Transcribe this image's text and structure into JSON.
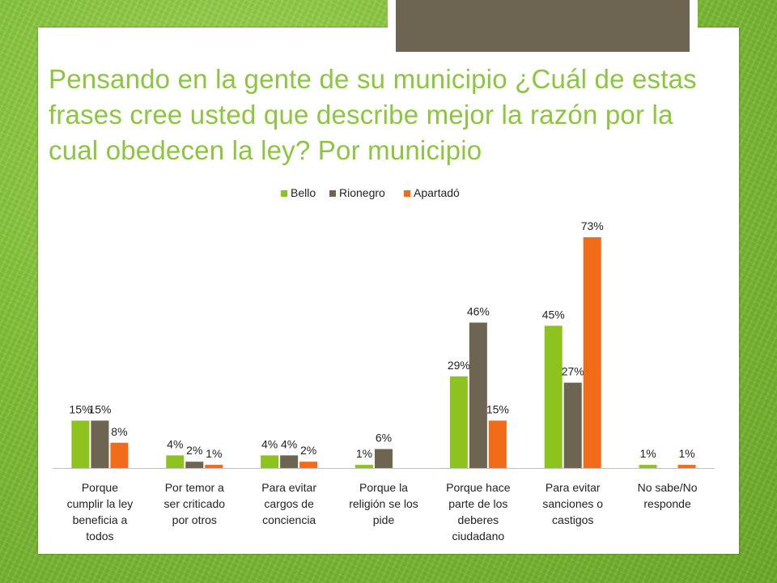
{
  "title": "Pensando en la gente de su municipio ¿Cuál de estas frases cree usted que describe mejor la razón por la cual obedecen la ley? Por municipio",
  "colors": {
    "Bello": "#8dc21f",
    "Rionegro": "#6d6551",
    "Apartadó": "#f26b18",
    "title": "#8cc63e"
  },
  "chart_data": {
    "type": "bar",
    "title": "Pensando en la gente de su municipio ¿Cuál de estas frases cree usted que describe mejor la razón por la cual obedecen la ley? Por municipio",
    "xlabel": "",
    "ylabel": "",
    "ylim": [
      0,
      80
    ],
    "grid": false,
    "legend": "top-center",
    "categories": [
      [
        "Porque",
        "cumplir la ley",
        "beneficia a",
        "todos"
      ],
      [
        "Por temor a",
        "ser criticado",
        "por otros"
      ],
      [
        "Para evitar",
        "cargos de",
        "conciencia"
      ],
      [
        "Porque la",
        "religión se los",
        "pide"
      ],
      [
        "Porque hace",
        "parte de los",
        "deberes",
        "ciudadano"
      ],
      [
        "Para evitar",
        "sanciones o",
        "castigos"
      ],
      [
        "No sabe/No",
        "responde"
      ]
    ],
    "series": [
      {
        "name": "Bello",
        "values": [
          15,
          4,
          4,
          1,
          29,
          45,
          1
        ],
        "labels": [
          "15%",
          "4%",
          "4%",
          "1%",
          "29%",
          "45%",
          "1%"
        ]
      },
      {
        "name": "Rionegro",
        "values": [
          15,
          2,
          4,
          6,
          46,
          27,
          null
        ],
        "labels": [
          "15%",
          "2%",
          "4%",
          "6%",
          "46%",
          "27%",
          null
        ]
      },
      {
        "name": "Apartadó",
        "values": [
          8,
          1,
          2,
          null,
          15,
          73,
          1
        ],
        "labels": [
          "8%",
          "1%",
          "2%",
          null,
          "15%",
          "73%",
          "1%"
        ]
      }
    ]
  }
}
